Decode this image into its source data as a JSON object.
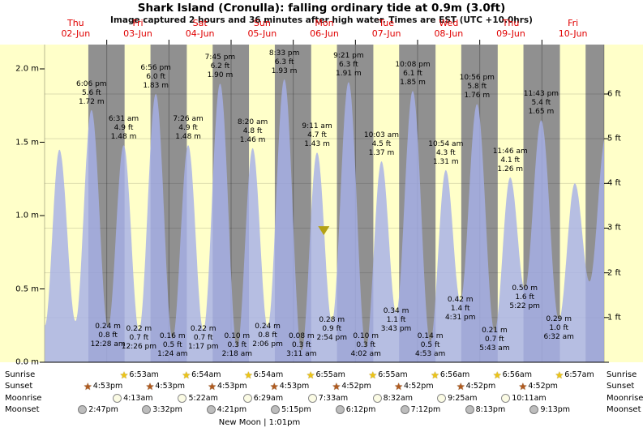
{
  "chart_data": {
    "type": "area",
    "title": "Shark Island (Cronulla): falling ordinary tide at 0.9m (3.0ft)",
    "subtitle": "Image captured 2 hours and 36 minutes after high water. Times are EST (UTC +10.0hrs)",
    "x_axis": {
      "days": [
        {
          "name": "Thu",
          "date": "02-Jun"
        },
        {
          "name": "Fri",
          "date": "03-Jun"
        },
        {
          "name": "Sat",
          "date": "04-Jun"
        },
        {
          "name": "Sun",
          "date": "05-Jun"
        },
        {
          "name": "Mon",
          "date": "06-Jun"
        },
        {
          "name": "Tue",
          "date": "07-Jun"
        },
        {
          "name": "Wed",
          "date": "08-Jun"
        },
        {
          "name": "Thu",
          "date": "09-Jun"
        },
        {
          "name": "Fri",
          "date": "10-Jun"
        }
      ]
    },
    "y_axis_left": {
      "unit": "m",
      "ticks": [
        {
          "label": "0.0 m",
          "m": 0.0
        },
        {
          "label": "0.5 m",
          "m": 0.5
        },
        {
          "label": "1.0 m",
          "m": 1.0
        },
        {
          "label": "1.5 m",
          "m": 1.5
        },
        {
          "label": "2.0 m",
          "m": 2.0
        }
      ]
    },
    "y_axis_right": {
      "unit": "ft",
      "ticks": [
        {
          "label": "1 ft",
          "ft": 1
        },
        {
          "label": "2 ft",
          "ft": 2
        },
        {
          "label": "3 ft",
          "ft": 3
        },
        {
          "label": "4 ft",
          "ft": 4
        },
        {
          "label": "5 ft",
          "ft": 5
        },
        {
          "label": "6 ft",
          "ft": 6
        }
      ]
    },
    "ylim_m": [
      0,
      2.15
    ],
    "tide_events": [
      {
        "kind": "low",
        "t": 0.004,
        "m": 0.25,
        "labeled": false
      },
      {
        "kind": "high",
        "t": 0.238,
        "m": 1.45,
        "labeled": false
      },
      {
        "kind": "low",
        "t": 0.497,
        "m": 0.28,
        "labeled": false
      },
      {
        "kind": "high",
        "t": 0.754,
        "m": 1.72,
        "ft": 5.6,
        "time": "6:06 pm",
        "labeled": true
      },
      {
        "kind": "low",
        "t": 1.019,
        "m": 0.24,
        "ft": 0.8,
        "time": "12:28 am",
        "labeled": true
      },
      {
        "kind": "high",
        "t": 1.272,
        "m": 1.48,
        "ft": 4.9,
        "time": "6:31 am",
        "labeled": true
      },
      {
        "kind": "low",
        "t": 1.518,
        "m": 0.22,
        "ft": 0.7,
        "time": "12:26 pm",
        "labeled": true
      },
      {
        "kind": "high",
        "t": 1.789,
        "m": 1.83,
        "ft": 6.0,
        "time": "6:56 pm",
        "labeled": true
      },
      {
        "kind": "low",
        "t": 2.058,
        "m": 0.16,
        "ft": 0.5,
        "time": "1:24 am",
        "labeled": true
      },
      {
        "kind": "high",
        "t": 2.31,
        "m": 1.48,
        "ft": 4.9,
        "time": "7:26 am",
        "labeled": true
      },
      {
        "kind": "low",
        "t": 2.553,
        "m": 0.22,
        "ft": 0.7,
        "time": "1:17 pm",
        "labeled": true
      },
      {
        "kind": "high",
        "t": 2.823,
        "m": 1.9,
        "ft": 6.2,
        "time": "7:45 pm",
        "labeled": true
      },
      {
        "kind": "low",
        "t": 3.096,
        "m": 0.1,
        "ft": 0.3,
        "time": "2:18 am",
        "labeled": true
      },
      {
        "kind": "high",
        "t": 3.347,
        "m": 1.46,
        "ft": 4.8,
        "time": "8:20 am",
        "labeled": true
      },
      {
        "kind": "low",
        "t": 3.588,
        "m": 0.24,
        "ft": 0.8,
        "time": "2:06 pm",
        "labeled": true
      },
      {
        "kind": "high",
        "t": 3.856,
        "m": 1.93,
        "ft": 6.3,
        "time": "8:33 pm",
        "labeled": true
      },
      {
        "kind": "low",
        "t": 4.133,
        "m": 0.08,
        "ft": 0.3,
        "time": "3:11 am",
        "labeled": true
      },
      {
        "kind": "high",
        "t": 4.383,
        "m": 1.43,
        "ft": 4.7,
        "time": "9:11 am",
        "labeled": true
      },
      {
        "kind": "low",
        "t": 4.621,
        "m": 0.28,
        "ft": 0.9,
        "time": "2:54 pm",
        "labeled": true
      },
      {
        "kind": "high",
        "t": 4.89,
        "m": 1.91,
        "ft": 6.3,
        "time": "9:21 pm",
        "labeled": true
      },
      {
        "kind": "low",
        "t": 5.168,
        "m": 0.1,
        "ft": 0.3,
        "time": "4:02 am",
        "labeled": true
      },
      {
        "kind": "high",
        "t": 5.419,
        "m": 1.37,
        "ft": 4.5,
        "time": "10:03 am",
        "labeled": true
      },
      {
        "kind": "low",
        "t": 5.655,
        "m": 0.34,
        "ft": 1.1,
        "time": "3:43 pm",
        "labeled": true
      },
      {
        "kind": "high",
        "t": 5.922,
        "m": 1.85,
        "ft": 6.1,
        "time": "10:08 pm",
        "labeled": true
      },
      {
        "kind": "low",
        "t": 6.204,
        "m": 0.14,
        "ft": 0.5,
        "time": "4:53 am",
        "labeled": true
      },
      {
        "kind": "high",
        "t": 6.454,
        "m": 1.31,
        "ft": 4.3,
        "time": "10:54 am",
        "labeled": true
      },
      {
        "kind": "low",
        "t": 6.688,
        "m": 0.42,
        "ft": 1.4,
        "time": "4:31 pm",
        "labeled": true
      },
      {
        "kind": "high",
        "t": 6.956,
        "m": 1.76,
        "ft": 5.8,
        "time": "10:56 pm",
        "labeled": true
      },
      {
        "kind": "low",
        "t": 7.238,
        "m": 0.21,
        "ft": 0.7,
        "time": "5:43 am",
        "labeled": true
      },
      {
        "kind": "high",
        "t": 7.49,
        "m": 1.26,
        "ft": 4.1,
        "time": "11:46 am",
        "labeled": true
      },
      {
        "kind": "low",
        "t": 7.724,
        "m": 0.5,
        "ft": 1.6,
        "time": "5:22 pm",
        "labeled": true
      },
      {
        "kind": "high",
        "t": 7.988,
        "m": 1.65,
        "ft": 5.4,
        "time": "11:43 pm",
        "labeled": true
      },
      {
        "kind": "low",
        "t": 8.272,
        "m": 0.29,
        "ft": 1.0,
        "time": "6:32 am",
        "labeled": true
      },
      {
        "kind": "high",
        "t": 8.53,
        "m": 1.22,
        "labeled": false
      },
      {
        "kind": "low",
        "t": 8.765,
        "m": 0.55,
        "labeled": false
      },
      {
        "kind": "high",
        "t": 9.03,
        "m": 1.55,
        "labeled": false
      }
    ],
    "current_marker": {
      "t": 4.491,
      "m": 0.9
    }
  },
  "astro": {
    "rows": [
      {
        "id": "sunrise",
        "label": "Sunrise",
        "icon": "sunrise-star",
        "items": [
          {
            "time": "6:53am",
            "day": 1,
            "frac": 0.2868
          },
          {
            "time": "6:54am",
            "day": 2,
            "frac": 0.2875
          },
          {
            "time": "6:54am",
            "day": 3,
            "frac": 0.2875
          },
          {
            "time": "6:55am",
            "day": 4,
            "frac": 0.2882
          },
          {
            "time": "6:55am",
            "day": 5,
            "frac": 0.2882
          },
          {
            "time": "6:56am",
            "day": 6,
            "frac": 0.2889
          },
          {
            "time": "6:56am",
            "day": 7,
            "frac": 0.2889
          },
          {
            "time": "6:57am",
            "day": 8,
            "frac": 0.2896
          }
        ]
      },
      {
        "id": "sunset",
        "label": "Sunset",
        "icon": "sunset-star",
        "items": [
          {
            "time": "4:53pm",
            "day": 0,
            "frac": 0.7035
          },
          {
            "time": "4:53pm",
            "day": 1,
            "frac": 0.7035
          },
          {
            "time": "4:53pm",
            "day": 2,
            "frac": 0.7035
          },
          {
            "time": "4:53pm",
            "day": 3,
            "frac": 0.7035
          },
          {
            "time": "4:52pm",
            "day": 4,
            "frac": 0.7028
          },
          {
            "time": "4:52pm",
            "day": 5,
            "frac": 0.7028
          },
          {
            "time": "4:52pm",
            "day": 6,
            "frac": 0.7028
          },
          {
            "time": "4:52pm",
            "day": 7,
            "frac": 0.7028
          }
        ]
      },
      {
        "id": "moonrise",
        "label": "Moonrise",
        "icon": "moonrise-circle",
        "items": [
          {
            "time": "4:13am",
            "day": 1,
            "frac": 0.1757
          },
          {
            "time": "5:22am",
            "day": 2,
            "frac": 0.2236
          },
          {
            "time": "6:29am",
            "day": 3,
            "frac": 0.2701
          },
          {
            "time": "7:33am",
            "day": 4,
            "frac": 0.3146
          },
          {
            "time": "8:32am",
            "day": 5,
            "frac": 0.3556
          },
          {
            "time": "9:25am",
            "day": 6,
            "frac": 0.3924
          },
          {
            "time": "10:11am",
            "day": 7,
            "frac": 0.4243
          }
        ]
      },
      {
        "id": "moonset",
        "label": "Moonset",
        "icon": "moonset-circle",
        "items": [
          {
            "time": "2:47pm",
            "day": 0,
            "frac": 0.616
          },
          {
            "time": "3:32pm",
            "day": 1,
            "frac": 0.6472
          },
          {
            "time": "4:21pm",
            "day": 2,
            "frac": 0.6813
          },
          {
            "time": "5:15pm",
            "day": 3,
            "frac": 0.7188
          },
          {
            "time": "6:12pm",
            "day": 4,
            "frac": 0.7583
          },
          {
            "time": "7:12pm",
            "day": 5,
            "frac": 0.8
          },
          {
            "time": "8:13pm",
            "day": 6,
            "frac": 0.8424
          },
          {
            "time": "9:13pm",
            "day": 7,
            "frac": 0.884
          }
        ]
      }
    ],
    "new_moon": "New Moon | 1:01pm"
  },
  "colors": {
    "day_band": "#ffffc9",
    "night_band": "#909090",
    "tide_fill": "#a6b0e8",
    "day_label": "#e00000",
    "marker": "#b3a114"
  }
}
